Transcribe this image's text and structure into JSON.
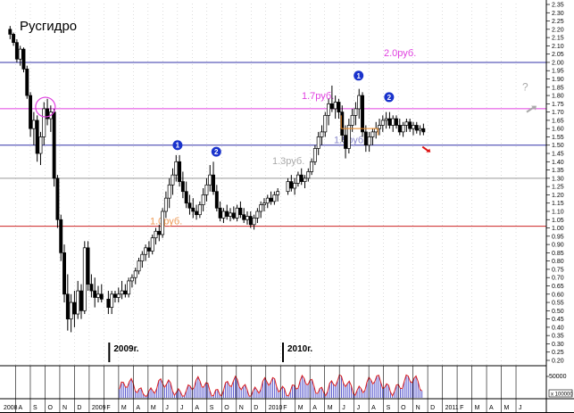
{
  "chart_data": {
    "type": "candlestick",
    "title": "Русгидро",
    "y_ticks": [
      "0.20",
      "0.25",
      "0.30",
      "0.35",
      "0.40",
      "0.45",
      "0.50",
      "0.55",
      "0.60",
      "0.65",
      "0.70",
      "0.75",
      "0.80",
      "0.85",
      "0.90",
      "0.95",
      "1.00",
      "1.05",
      "1.10",
      "1.15",
      "1.20",
      "1.25",
      "1.30",
      "1.35",
      "1.40",
      "1.45",
      "1.50",
      "1.55",
      "1.60",
      "1.65",
      "1.70",
      "1.75",
      "1.80",
      "1.85",
      "1.90",
      "1.95",
      "2.00",
      "2.05",
      "2.10",
      "2.15",
      "2.20",
      "2.25",
      "2.30",
      "2.35"
    ],
    "ylim": [
      0.2,
      2.35
    ],
    "x_ticks": [
      "2008",
      "A",
      "S",
      "O",
      "N",
      "D",
      "2009",
      "F",
      "M",
      "A",
      "M",
      "J",
      "J",
      "A",
      "S",
      "O",
      "N",
      "D",
      "2010",
      "F",
      "M",
      "A",
      "M",
      "J",
      "J",
      "A",
      "S",
      "O",
      "N",
      "D",
      "2011",
      "F",
      "M",
      "A",
      "M",
      "J"
    ],
    "year_labels": [
      "2009г.",
      "2010г."
    ],
    "levels": [
      {
        "value": 2.0,
        "label": "2.0руб.",
        "color": "#3333aa",
        "label_color": "#e040e0"
      },
      {
        "value": 1.72,
        "label": "1.7руб.",
        "color": "#e040e0",
        "label_color": "#e040e0"
      },
      {
        "value": 1.5,
        "label": "1.5руб.",
        "color": "#3333aa",
        "label_color": "#8888cc"
      },
      {
        "value": 1.3,
        "label": "1.3руб.",
        "color": "#999999",
        "label_color": "#aaaaaa"
      },
      {
        "value": 1.01,
        "label": "1.0руб.",
        "color": "#cc2222",
        "label_color": "#ee9955"
      }
    ],
    "markers": [
      {
        "text": "1",
        "x": "2009-06-01",
        "y": 1.5
      },
      {
        "text": "2",
        "x": "2009-08-20",
        "y": 1.46
      },
      {
        "text": "1",
        "x": "2010-06-10",
        "y": 1.92
      },
      {
        "text": "2",
        "x": "2010-08-12",
        "y": 1.79
      }
    ],
    "question_mark": "?",
    "price_series": [
      {
        "date": "2008-06-20",
        "o": 2.2,
        "h": 2.22,
        "l": 2.14,
        "c": 2.17
      },
      {
        "date": "2008-06-27",
        "o": 2.17,
        "h": 2.18,
        "l": 2.1,
        "c": 2.12
      },
      {
        "date": "2008-07-04",
        "o": 2.12,
        "h": 2.14,
        "l": 2.0,
        "c": 2.02
      },
      {
        "date": "2008-07-11",
        "o": 2.02,
        "h": 2.1,
        "l": 1.98,
        "c": 2.08
      },
      {
        "date": "2008-07-18",
        "o": 2.08,
        "h": 2.09,
        "l": 1.94,
        "c": 1.96
      },
      {
        "date": "2008-07-25",
        "o": 1.96,
        "h": 1.98,
        "l": 1.78,
        "c": 1.8
      },
      {
        "date": "2008-08-01",
        "o": 1.8,
        "h": 1.82,
        "l": 1.55,
        "c": 1.6
      },
      {
        "date": "2008-08-08",
        "o": 1.6,
        "h": 1.7,
        "l": 1.5,
        "c": 1.65
      },
      {
        "date": "2008-08-15",
        "o": 1.65,
        "h": 1.68,
        "l": 1.4,
        "c": 1.45
      },
      {
        "date": "2008-08-22",
        "o": 1.45,
        "h": 1.58,
        "l": 1.38,
        "c": 1.55
      },
      {
        "date": "2008-08-29",
        "o": 1.55,
        "h": 1.76,
        "l": 1.5,
        "c": 1.72
      },
      {
        "date": "2008-09-05",
        "o": 1.72,
        "h": 1.78,
        "l": 1.62,
        "c": 1.66
      },
      {
        "date": "2008-09-12",
        "o": 1.66,
        "h": 1.74,
        "l": 1.58,
        "c": 1.7
      },
      {
        "date": "2008-09-19",
        "o": 1.7,
        "h": 1.72,
        "l": 1.25,
        "c": 1.3
      },
      {
        "date": "2008-09-26",
        "o": 1.3,
        "h": 1.32,
        "l": 1.0,
        "c": 1.05
      },
      {
        "date": "2008-10-03",
        "o": 1.05,
        "h": 1.08,
        "l": 0.8,
        "c": 0.85
      },
      {
        "date": "2008-10-10",
        "o": 0.85,
        "h": 0.9,
        "l": 0.55,
        "c": 0.6
      },
      {
        "date": "2008-10-17",
        "o": 0.6,
        "h": 0.72,
        "l": 0.38,
        "c": 0.45
      },
      {
        "date": "2008-10-24",
        "o": 0.45,
        "h": 0.6,
        "l": 0.37,
        "c": 0.55
      },
      {
        "date": "2008-10-31",
        "o": 0.55,
        "h": 0.62,
        "l": 0.4,
        "c": 0.48
      },
      {
        "date": "2008-11-07",
        "o": 0.48,
        "h": 0.68,
        "l": 0.45,
        "c": 0.62
      },
      {
        "date": "2008-11-14",
        "o": 0.62,
        "h": 0.66,
        "l": 0.45,
        "c": 0.5
      },
      {
        "date": "2008-11-21",
        "o": 0.5,
        "h": 0.92,
        "l": 0.48,
        "c": 0.88
      },
      {
        "date": "2008-11-28",
        "o": 0.88,
        "h": 0.92,
        "l": 0.62,
        "c": 0.66
      },
      {
        "date": "2008-12-05",
        "o": 0.66,
        "h": 0.72,
        "l": 0.58,
        "c": 0.62
      },
      {
        "date": "2008-12-12",
        "o": 0.62,
        "h": 0.7,
        "l": 0.52,
        "c": 0.58
      },
      {
        "date": "2008-12-19",
        "o": 0.58,
        "h": 0.65,
        "l": 0.55,
        "c": 0.6
      },
      {
        "date": "2008-12-26",
        "o": 0.6,
        "h": 0.66,
        "l": 0.55,
        "c": 0.57
      },
      {
        "date": "2009-01-09",
        "o": 0.57,
        "h": 0.62,
        "l": 0.48,
        "c": 0.52
      },
      {
        "date": "2009-01-16",
        "o": 0.52,
        "h": 0.62,
        "l": 0.48,
        "c": 0.6
      },
      {
        "date": "2009-01-23",
        "o": 0.6,
        "h": 0.62,
        "l": 0.55,
        "c": 0.58
      },
      {
        "date": "2009-01-30",
        "o": 0.58,
        "h": 0.64,
        "l": 0.55,
        "c": 0.6
      },
      {
        "date": "2009-02-06",
        "o": 0.6,
        "h": 0.68,
        "l": 0.57,
        "c": 0.62
      },
      {
        "date": "2009-02-13",
        "o": 0.62,
        "h": 0.66,
        "l": 0.58,
        "c": 0.6
      },
      {
        "date": "2009-02-20",
        "o": 0.6,
        "h": 0.7,
        "l": 0.58,
        "c": 0.68
      },
      {
        "date": "2009-02-27",
        "o": 0.68,
        "h": 0.72,
        "l": 0.64,
        "c": 0.7
      },
      {
        "date": "2009-03-06",
        "o": 0.7,
        "h": 0.76,
        "l": 0.66,
        "c": 0.74
      },
      {
        "date": "2009-03-13",
        "o": 0.74,
        "h": 0.82,
        "l": 0.72,
        "c": 0.8
      },
      {
        "date": "2009-03-20",
        "o": 0.8,
        "h": 0.86,
        "l": 0.76,
        "c": 0.84
      },
      {
        "date": "2009-03-27",
        "o": 0.84,
        "h": 0.9,
        "l": 0.8,
        "c": 0.88
      },
      {
        "date": "2009-04-03",
        "o": 0.88,
        "h": 0.92,
        "l": 0.82,
        "c": 0.86
      },
      {
        "date": "2009-04-10",
        "o": 0.86,
        "h": 0.96,
        "l": 0.84,
        "c": 0.94
      },
      {
        "date": "2009-04-17",
        "o": 0.94,
        "h": 1.0,
        "l": 0.9,
        "c": 0.98
      },
      {
        "date": "2009-04-24",
        "o": 0.98,
        "h": 1.02,
        "l": 0.92,
        "c": 0.96
      },
      {
        "date": "2009-05-01",
        "o": 0.96,
        "h": 1.12,
        "l": 0.94,
        "c": 1.1
      },
      {
        "date": "2009-05-08",
        "o": 1.1,
        "h": 1.22,
        "l": 1.06,
        "c": 1.18
      },
      {
        "date": "2009-05-15",
        "o": 1.18,
        "h": 1.3,
        "l": 1.12,
        "c": 1.26
      },
      {
        "date": "2009-05-22",
        "o": 1.26,
        "h": 1.36,
        "l": 1.2,
        "c": 1.32
      },
      {
        "date": "2009-05-29",
        "o": 1.32,
        "h": 1.44,
        "l": 1.28,
        "c": 1.4
      },
      {
        "date": "2009-06-05",
        "o": 1.4,
        "h": 1.44,
        "l": 1.25,
        "c": 1.28
      },
      {
        "date": "2009-06-12",
        "o": 1.28,
        "h": 1.34,
        "l": 1.18,
        "c": 1.22
      },
      {
        "date": "2009-06-19",
        "o": 1.22,
        "h": 1.28,
        "l": 1.12,
        "c": 1.15
      },
      {
        "date": "2009-06-26",
        "o": 1.15,
        "h": 1.2,
        "l": 1.08,
        "c": 1.12
      },
      {
        "date": "2009-07-03",
        "o": 1.12,
        "h": 1.18,
        "l": 1.06,
        "c": 1.1
      },
      {
        "date": "2009-07-10",
        "o": 1.1,
        "h": 1.14,
        "l": 1.05,
        "c": 1.08
      },
      {
        "date": "2009-07-17",
        "o": 1.08,
        "h": 1.16,
        "l": 1.06,
        "c": 1.14
      },
      {
        "date": "2009-07-24",
        "o": 1.14,
        "h": 1.24,
        "l": 1.1,
        "c": 1.2
      },
      {
        "date": "2009-07-31",
        "o": 1.2,
        "h": 1.3,
        "l": 1.16,
        "c": 1.26
      },
      {
        "date": "2009-08-07",
        "o": 1.26,
        "h": 1.38,
        "l": 1.22,
        "c": 1.32
      },
      {
        "date": "2009-08-14",
        "o": 1.32,
        "h": 1.4,
        "l": 1.2,
        "c": 1.22
      },
      {
        "date": "2009-08-21",
        "o": 1.22,
        "h": 1.26,
        "l": 1.1,
        "c": 1.12
      },
      {
        "date": "2009-08-28",
        "o": 1.12,
        "h": 1.16,
        "l": 1.04,
        "c": 1.06
      },
      {
        "date": "2009-09-04",
        "o": 1.06,
        "h": 1.12,
        "l": 1.03,
        "c": 1.1
      },
      {
        "date": "2009-09-11",
        "o": 1.1,
        "h": 1.14,
        "l": 1.05,
        "c": 1.07
      },
      {
        "date": "2009-09-18",
        "o": 1.07,
        "h": 1.12,
        "l": 1.04,
        "c": 1.09
      },
      {
        "date": "2009-09-25",
        "o": 1.09,
        "h": 1.13,
        "l": 1.05,
        "c": 1.06
      },
      {
        "date": "2009-10-02",
        "o": 1.06,
        "h": 1.14,
        "l": 1.04,
        "c": 1.12
      },
      {
        "date": "2009-10-09",
        "o": 1.12,
        "h": 1.16,
        "l": 1.06,
        "c": 1.08
      },
      {
        "date": "2009-10-16",
        "o": 1.08,
        "h": 1.12,
        "l": 1.03,
        "c": 1.05
      },
      {
        "date": "2009-10-23",
        "o": 1.05,
        "h": 1.1,
        "l": 1.02,
        "c": 1.07
      },
      {
        "date": "2009-10-30",
        "o": 1.07,
        "h": 1.1,
        "l": 1.0,
        "c": 1.02
      },
      {
        "date": "2009-11-06",
        "o": 1.02,
        "h": 1.08,
        "l": 0.99,
        "c": 1.06
      },
      {
        "date": "2009-11-13",
        "o": 1.06,
        "h": 1.12,
        "l": 1.03,
        "c": 1.1
      },
      {
        "date": "2009-11-20",
        "o": 1.1,
        "h": 1.16,
        "l": 1.06,
        "c": 1.14
      },
      {
        "date": "2009-11-27",
        "o": 1.14,
        "h": 1.18,
        "l": 1.1,
        "c": 1.15
      },
      {
        "date": "2009-12-04",
        "o": 1.15,
        "h": 1.2,
        "l": 1.12,
        "c": 1.18
      },
      {
        "date": "2009-12-11",
        "o": 1.18,
        "h": 1.22,
        "l": 1.14,
        "c": 1.16
      },
      {
        "date": "2009-12-18",
        "o": 1.16,
        "h": 1.22,
        "l": 1.14,
        "c": 1.2
      },
      {
        "date": "2009-12-25",
        "o": 1.2,
        "h": 1.24,
        "l": 1.16,
        "c": 1.22
      },
      {
        "date": "2010-01-15",
        "o": 1.22,
        "h": 1.3,
        "l": 1.2,
        "c": 1.28
      },
      {
        "date": "2010-01-22",
        "o": 1.28,
        "h": 1.32,
        "l": 1.22,
        "c": 1.24
      },
      {
        "date": "2010-01-29",
        "o": 1.24,
        "h": 1.3,
        "l": 1.2,
        "c": 1.27
      },
      {
        "date": "2010-02-05",
        "o": 1.27,
        "h": 1.34,
        "l": 1.25,
        "c": 1.32
      },
      {
        "date": "2010-02-12",
        "o": 1.32,
        "h": 1.36,
        "l": 1.26,
        "c": 1.28
      },
      {
        "date": "2010-02-19",
        "o": 1.28,
        "h": 1.32,
        "l": 1.24,
        "c": 1.3
      },
      {
        "date": "2010-02-26",
        "o": 1.3,
        "h": 1.36,
        "l": 1.28,
        "c": 1.34
      },
      {
        "date": "2010-03-05",
        "o": 1.34,
        "h": 1.42,
        "l": 1.32,
        "c": 1.4
      },
      {
        "date": "2010-03-12",
        "o": 1.4,
        "h": 1.5,
        "l": 1.38,
        "c": 1.48
      },
      {
        "date": "2010-03-19",
        "o": 1.48,
        "h": 1.58,
        "l": 1.44,
        "c": 1.55
      },
      {
        "date": "2010-03-26",
        "o": 1.55,
        "h": 1.62,
        "l": 1.5,
        "c": 1.58
      },
      {
        "date": "2010-04-02",
        "o": 1.58,
        "h": 1.7,
        "l": 1.55,
        "c": 1.68
      },
      {
        "date": "2010-04-09",
        "o": 1.68,
        "h": 1.78,
        "l": 1.62,
        "c": 1.75
      },
      {
        "date": "2010-04-16",
        "o": 1.75,
        "h": 1.86,
        "l": 1.7,
        "c": 1.72
      },
      {
        "date": "2010-04-23",
        "o": 1.72,
        "h": 1.8,
        "l": 1.66,
        "c": 1.76
      },
      {
        "date": "2010-04-30",
        "o": 1.76,
        "h": 1.78,
        "l": 1.66,
        "c": 1.7
      },
      {
        "date": "2010-05-07",
        "o": 1.7,
        "h": 1.74,
        "l": 1.52,
        "c": 1.56
      },
      {
        "date": "2010-05-14",
        "o": 1.56,
        "h": 1.62,
        "l": 1.42,
        "c": 1.48
      },
      {
        "date": "2010-05-21",
        "o": 1.48,
        "h": 1.66,
        "l": 1.45,
        "c": 1.62
      },
      {
        "date": "2010-05-28",
        "o": 1.62,
        "h": 1.72,
        "l": 1.58,
        "c": 1.68
      },
      {
        "date": "2010-06-04",
        "o": 1.68,
        "h": 1.76,
        "l": 1.62,
        "c": 1.72
      },
      {
        "date": "2010-06-11",
        "o": 1.72,
        "h": 1.84,
        "l": 1.66,
        "c": 1.8
      },
      {
        "date": "2010-06-18",
        "o": 1.8,
        "h": 1.82,
        "l": 1.55,
        "c": 1.58
      },
      {
        "date": "2010-06-25",
        "o": 1.58,
        "h": 1.62,
        "l": 1.46,
        "c": 1.5
      },
      {
        "date": "2010-07-02",
        "o": 1.5,
        "h": 1.58,
        "l": 1.46,
        "c": 1.55
      },
      {
        "date": "2010-07-09",
        "o": 1.55,
        "h": 1.6,
        "l": 1.5,
        "c": 1.58
      },
      {
        "date": "2010-07-16",
        "o": 1.58,
        "h": 1.64,
        "l": 1.54,
        "c": 1.6
      },
      {
        "date": "2010-07-23",
        "o": 1.6,
        "h": 1.66,
        "l": 1.56,
        "c": 1.62
      },
      {
        "date": "2010-07-30",
        "o": 1.62,
        "h": 1.68,
        "l": 1.58,
        "c": 1.65
      },
      {
        "date": "2010-08-06",
        "o": 1.65,
        "h": 1.7,
        "l": 1.6,
        "c": 1.66
      },
      {
        "date": "2010-08-13",
        "o": 1.66,
        "h": 1.7,
        "l": 1.6,
        "c": 1.62
      },
      {
        "date": "2010-08-20",
        "o": 1.62,
        "h": 1.68,
        "l": 1.58,
        "c": 1.66
      },
      {
        "date": "2010-08-27",
        "o": 1.66,
        "h": 1.68,
        "l": 1.6,
        "c": 1.62
      },
      {
        "date": "2010-09-03",
        "o": 1.62,
        "h": 1.66,
        "l": 1.56,
        "c": 1.58
      },
      {
        "date": "2010-09-10",
        "o": 1.58,
        "h": 1.64,
        "l": 1.55,
        "c": 1.62
      },
      {
        "date": "2010-09-17",
        "o": 1.62,
        "h": 1.66,
        "l": 1.58,
        "c": 1.64
      },
      {
        "date": "2010-09-24",
        "o": 1.64,
        "h": 1.66,
        "l": 1.58,
        "c": 1.6
      },
      {
        "date": "2010-10-01",
        "o": 1.6,
        "h": 1.64,
        "l": 1.56,
        "c": 1.62
      },
      {
        "date": "2010-10-08",
        "o": 1.62,
        "h": 1.64,
        "l": 1.57,
        "c": 1.59
      },
      {
        "date": "2010-10-15",
        "o": 1.59,
        "h": 1.62,
        "l": 1.56,
        "c": 1.6
      },
      {
        "date": "2010-10-22",
        "o": 1.6,
        "h": 1.63,
        "l": 1.56,
        "c": 1.58
      }
    ],
    "volume_tick": "50000",
    "volume_multiplier": "x 100000",
    "colors": {
      "axis": "#000000",
      "candle": "#000000",
      "volume_bar": "#5555cc",
      "volume_line": "#dd2222",
      "marker_fill": "#1a33cc",
      "circle": "#e040e0",
      "arrow_red": "#dd1111",
      "arrow_gray": "#aaaaaa",
      "box_orange": "#ee8822",
      "vgrid": "#bbbbbb"
    }
  }
}
